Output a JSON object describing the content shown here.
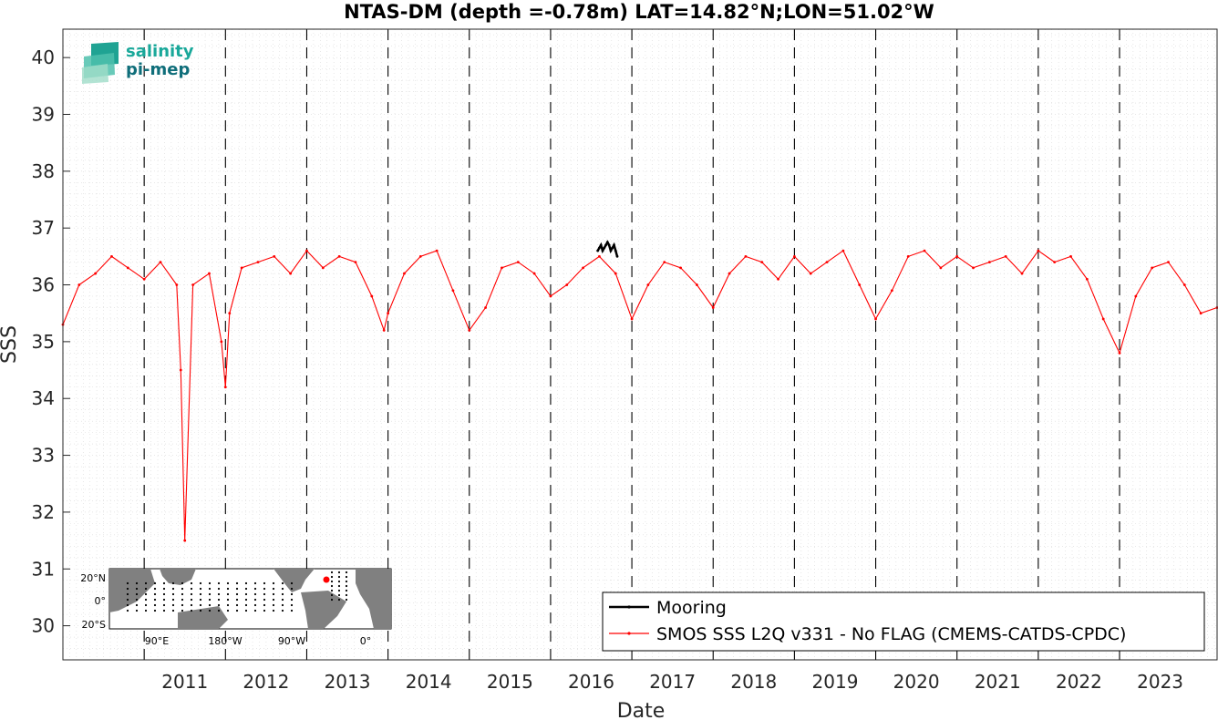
{
  "page": {
    "title": "NTAS-DM (depth =-0.78m) LAT=14.82°N;LON=51.02°W"
  },
  "logo": {
    "line1": "salinity",
    "line2": "pi-mep"
  },
  "chart_data": {
    "type": "line",
    "title": "NTAS-DM (depth =-0.78m) LAT=14.82°N;LON=51.02°W",
    "xlabel": "Date",
    "ylabel": "SSS",
    "xlim": [
      2010.0,
      2024.2
    ],
    "ylim": [
      29.4,
      40.5
    ],
    "x_ticks": [
      2011,
      2012,
      2013,
      2014,
      2015,
      2016,
      2017,
      2018,
      2019,
      2020,
      2021,
      2022,
      2023
    ],
    "y_ticks": [
      30,
      31,
      32,
      33,
      34,
      35,
      36,
      37,
      38,
      39,
      40
    ],
    "grid": "dotted",
    "year_lines": "dashed",
    "legend_position": "bottom-right",
    "colors": {
      "mooring": "#000000",
      "smos": "#ff0000"
    },
    "series": [
      {
        "name": "Mooring",
        "color": "#000000",
        "x": [
          2016.58,
          2016.6,
          2016.62,
          2016.64,
          2016.66,
          2016.68,
          2016.7,
          2016.72,
          2016.74,
          2016.76,
          2016.78,
          2016.8,
          2016.82
        ],
        "y": [
          36.6,
          36.65,
          36.7,
          36.6,
          36.65,
          36.7,
          36.75,
          36.7,
          36.6,
          36.65,
          36.7,
          36.6,
          36.5
        ]
      },
      {
        "name": "SMOS SSS L2Q v331 - No FLAG  (CMEMS-CATDS-CPDC)",
        "color": "#ff0000",
        "x": [
          2010.0,
          2010.2,
          2010.4,
          2010.6,
          2010.8,
          2011.0,
          2011.2,
          2011.4,
          2011.45,
          2011.5,
          2011.6,
          2011.8,
          2011.95,
          2012.0,
          2012.05,
          2012.2,
          2012.4,
          2012.6,
          2012.8,
          2013.0,
          2013.2,
          2013.4,
          2013.6,
          2013.8,
          2013.95,
          2014.0,
          2014.2,
          2014.4,
          2014.6,
          2014.8,
          2015.0,
          2015.2,
          2015.4,
          2015.6,
          2015.8,
          2016.0,
          2016.2,
          2016.4,
          2016.6,
          2016.8,
          2017.0,
          2017.2,
          2017.4,
          2017.6,
          2017.8,
          2018.0,
          2018.2,
          2018.4,
          2018.6,
          2018.8,
          2019.0,
          2019.2,
          2019.4,
          2019.6,
          2019.8,
          2020.0,
          2020.2,
          2020.4,
          2020.6,
          2020.8,
          2021.0,
          2021.2,
          2021.4,
          2021.6,
          2021.8,
          2022.0,
          2022.2,
          2022.4,
          2022.6,
          2022.8,
          2023.0,
          2023.2,
          2023.4,
          2023.6,
          2023.8,
          2024.0,
          2024.2
        ],
        "y": [
          35.3,
          36.0,
          36.2,
          36.5,
          36.3,
          36.1,
          36.4,
          36.0,
          34.5,
          31.5,
          36.0,
          36.2,
          35.0,
          34.2,
          35.5,
          36.3,
          36.4,
          36.5,
          36.2,
          36.6,
          36.3,
          36.5,
          36.4,
          35.8,
          35.2,
          35.5,
          36.2,
          36.5,
          36.6,
          35.9,
          35.2,
          35.6,
          36.3,
          36.4,
          36.2,
          35.8,
          36.0,
          36.3,
          36.5,
          36.2,
          35.4,
          36.0,
          36.4,
          36.3,
          36.0,
          35.6,
          36.2,
          36.5,
          36.4,
          36.1,
          36.5,
          36.2,
          36.4,
          36.6,
          36.0,
          35.4,
          35.9,
          36.5,
          36.6,
          36.3,
          36.5,
          36.3,
          36.4,
          36.5,
          36.2,
          36.6,
          36.4,
          36.5,
          36.1,
          35.4,
          34.8,
          35.8,
          36.3,
          36.4,
          36.0,
          35.5,
          35.6
        ]
      }
    ]
  },
  "inset_map": {
    "lat_labels": [
      "20°N",
      "0°",
      "20°S"
    ],
    "lon_labels": [
      "90°E",
      "180°W",
      "90°W",
      "0°"
    ],
    "marker_color": "#ff0000"
  }
}
